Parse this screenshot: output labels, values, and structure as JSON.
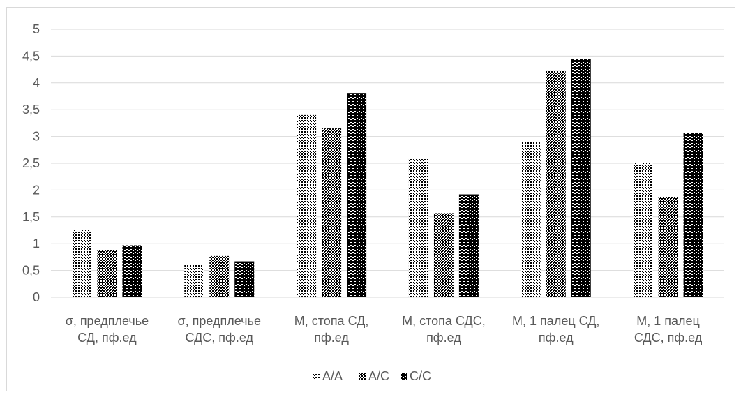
{
  "chart_data": {
    "type": "bar",
    "title": "",
    "xlabel": "",
    "ylabel": "",
    "ylim": [
      0,
      5
    ],
    "ytick_step": 0.5,
    "ytick_labels": [
      "0",
      "0,5",
      "1",
      "1,5",
      "2",
      "2,5",
      "3",
      "3,5",
      "4",
      "4,5",
      "5"
    ],
    "grid": true,
    "legend_position": "bottom",
    "categories": [
      [
        "σ, предплечье",
        "СД, пф.ед"
      ],
      [
        "σ, предплечье",
        "СДС, пф.ед"
      ],
      [
        "M, стопа СД,",
        "пф.ед"
      ],
      [
        "M, стопа СДС,",
        "пф.ед"
      ],
      [
        "M, 1 палец СД,",
        "пф.ед"
      ],
      [
        "M, 1 палец",
        "СДС, пф.ед"
      ]
    ],
    "series": [
      {
        "name": "A/A",
        "pattern": "dots",
        "values": [
          1.25,
          0.62,
          3.4,
          2.6,
          2.9,
          2.5
        ]
      },
      {
        "name": "A/C",
        "pattern": "checker",
        "values": [
          0.88,
          0.77,
          3.15,
          1.57,
          4.22,
          1.87
        ]
      },
      {
        "name": "C/C",
        "pattern": "dense",
        "values": [
          0.97,
          0.67,
          3.8,
          1.92,
          4.45,
          3.07
        ]
      }
    ],
    "colors": {
      "grid": "#d9d9d9",
      "axis": "#d9d9d9",
      "text": "#595959",
      "bar": "#000000"
    }
  }
}
